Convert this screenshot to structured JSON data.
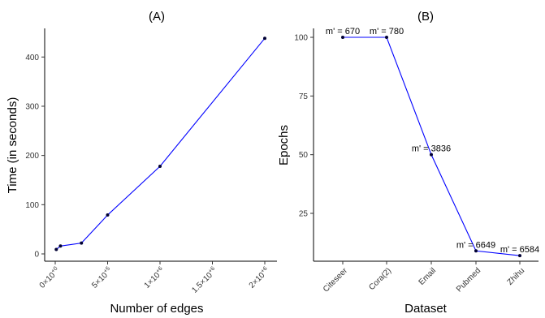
{
  "chart_data": [
    {
      "type": "line",
      "title": "(A)",
      "xlabel": "Number of edges",
      "ylabel": "Time (in seconds)",
      "xlim": [
        0,
        2000000
      ],
      "ylim": [
        0,
        440
      ],
      "x_tick_values": [
        0,
        500000,
        1000000,
        1500000,
        2000000
      ],
      "x_tick_labels": [
        {
          "base": "0×10",
          "exp": "+0"
        },
        {
          "base": "5×10",
          "exp": "+5"
        },
        {
          "base": "1×10",
          "exp": "+6"
        },
        {
          "base": "1.5×10",
          "exp": "+6"
        },
        {
          "base": "2×10",
          "exp": "+6"
        }
      ],
      "y_tick_values": [
        0,
        100,
        200,
        300,
        400
      ],
      "y_tick_labels": [
        "0",
        "100",
        "200",
        "300",
        "400"
      ],
      "series": [
        {
          "x": [
            10000,
            50000,
            250000,
            500000,
            1000000,
            2000000
          ],
          "y": [
            9,
            16,
            22,
            79,
            178,
            438
          ]
        }
      ],
      "line_color": "#0000ff",
      "point_color": "#000033",
      "grid": false
    },
    {
      "type": "line",
      "title": "(B)",
      "xlabel": "Dataset",
      "ylabel": "Epochs",
      "categories": [
        "Citeseer",
        "Cora(2)",
        "Email",
        "Pubmed",
        "Zhihu"
      ],
      "ylim": [
        5,
        105
      ],
      "y_tick_values": [
        25,
        50,
        75,
        100
      ],
      "y_tick_labels": [
        "25",
        "50",
        "75",
        "100"
      ],
      "series": [
        {
          "values": [
            100,
            100,
            50,
            9,
            7
          ],
          "labels": [
            "m' = 670",
            "m' = 780",
            "m' = 3836",
            "m' = 6649",
            "m' = 6584"
          ]
        }
      ],
      "line_color": "#0000ff",
      "point_color": "#000033",
      "grid": false
    }
  ]
}
